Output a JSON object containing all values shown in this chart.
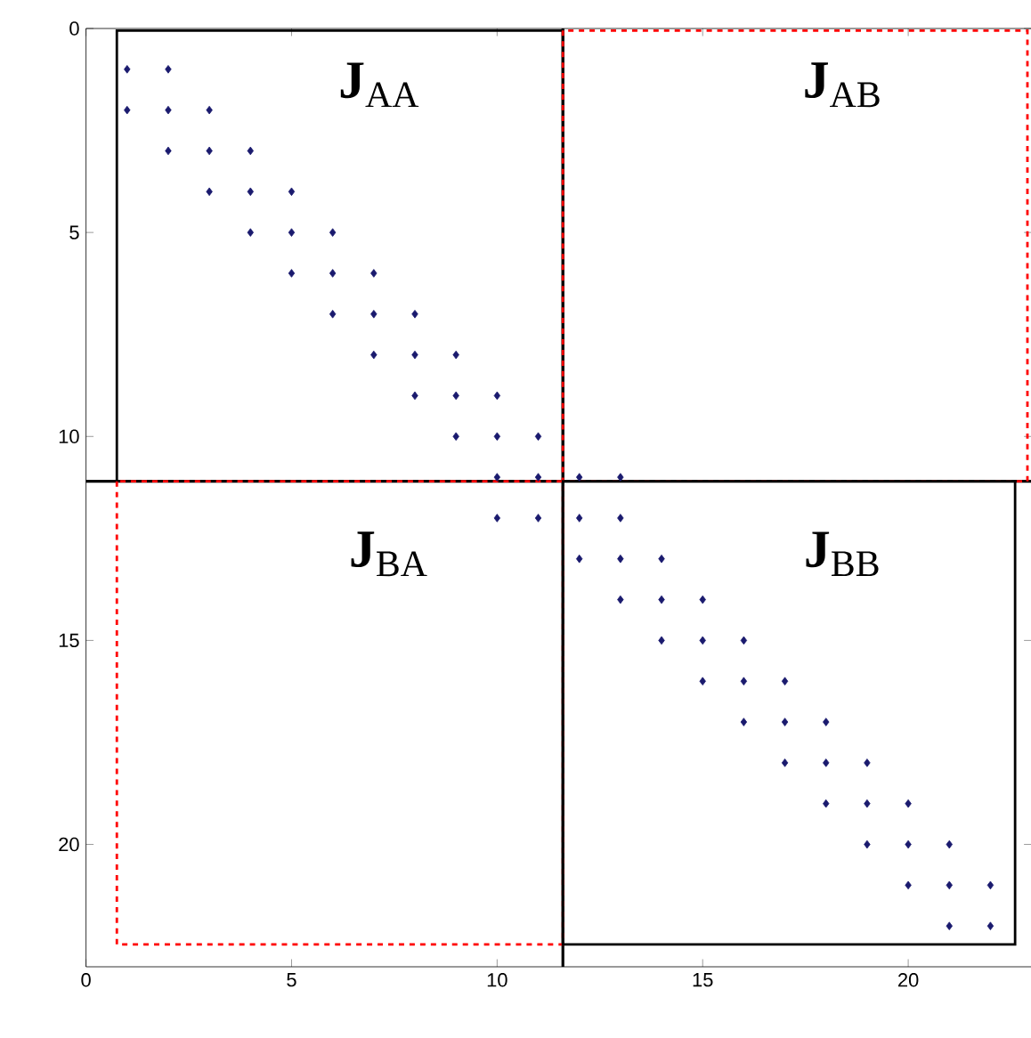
{
  "chart_data": {
    "type": "scatter",
    "x": [
      1,
      2,
      1,
      2,
      3,
      2,
      3,
      4,
      3,
      4,
      5,
      4,
      5,
      6,
      5,
      6,
      7,
      6,
      7,
      8,
      7,
      8,
      9,
      8,
      9,
      10,
      9,
      10,
      11,
      10,
      11,
      12,
      13,
      10,
      11,
      12,
      13,
      12,
      13,
      14,
      13,
      14,
      15,
      14,
      15,
      16,
      15,
      16,
      17,
      16,
      17,
      18,
      17,
      18,
      19,
      18,
      19,
      20,
      19,
      20,
      21,
      20,
      21,
      22,
      21,
      22
    ],
    "values": [
      1,
      1,
      2,
      2,
      2,
      3,
      3,
      3,
      4,
      4,
      4,
      5,
      5,
      5,
      6,
      6,
      6,
      7,
      7,
      7,
      8,
      8,
      8,
      9,
      9,
      9,
      10,
      10,
      10,
      11,
      11,
      11,
      11,
      12,
      12,
      12,
      12,
      13,
      13,
      13,
      14,
      14,
      14,
      15,
      15,
      15,
      16,
      16,
      16,
      17,
      17,
      17,
      18,
      18,
      18,
      19,
      19,
      19,
      20,
      20,
      20,
      21,
      21,
      21,
      22,
      22
    ],
    "color": "#1a1a6e",
    "marker": "diamond",
    "xlim": [
      0,
      23
    ],
    "ylim": [
      23,
      0
    ],
    "xticks": [
      0,
      5,
      10,
      15,
      20
    ],
    "yticks": [
      0,
      5,
      10,
      15,
      20
    ],
    "ref_lines": [
      {
        "axis": "x",
        "value": 11.6,
        "color": "#000000",
        "line_style": "solid"
      },
      {
        "axis": "y",
        "value": 11.1,
        "color": "#000000",
        "line_style": "solid"
      }
    ],
    "annotations": [
      "**J**$_{AA}$",
      "**J**$_{AB}$",
      "**J**$_{BA}$",
      "**J**$_{BB}$"
    ]
  }
}
